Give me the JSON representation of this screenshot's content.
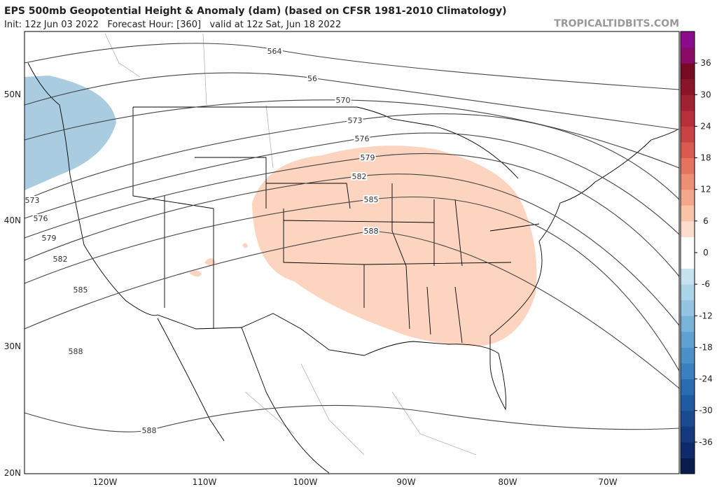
{
  "header": {
    "title": "EPS 500mb Geopotential Height & Anomaly (dam) (based on CFSR 1981-2010 Climatology)",
    "subtitle": "Init: 12z Jun 03 2022   Forecast Hour: [360]   valid at 12z Sat, Jun 18 2022",
    "watermark": "TROPICALTIDBITS.COM"
  },
  "map": {
    "lat_labels": [
      "50N",
      "40N",
      "30N",
      "20N"
    ],
    "lon_labels": [
      "120W",
      "110W",
      "100W",
      "90W",
      "80W",
      "70W"
    ],
    "contour_labels": [
      "564",
      "56",
      "570",
      "573",
      "576",
      "579",
      "582",
      "585",
      "588",
      "573",
      "576",
      "579",
      "582",
      "585",
      "588",
      "588"
    ]
  },
  "colorbar": {
    "ticks": [
      36,
      30,
      24,
      18,
      12,
      6,
      0,
      -6,
      -12,
      -18,
      -24,
      -30,
      -36
    ],
    "lim": [
      -42,
      42
    ],
    "colors": [
      "#0a1b4d",
      "#0f2a6b",
      "#13397f",
      "#194a92",
      "#1f5aa3",
      "#2a6cb2",
      "#3a7fbf",
      "#4b90c8",
      "#5fa1d0",
      "#78b3da",
      "#93c4e2",
      "#abd3e9",
      "#c6e1ef",
      "#ffffff",
      "#ffffff",
      "#fcdccb",
      "#f9c3a8",
      "#f4a88b",
      "#ee8f73",
      "#e5745f",
      "#d85b4f",
      "#c84343",
      "#b5303a",
      "#a02130",
      "#8a1428",
      "#760a22",
      "#8a0a6a",
      "#8c0a8c"
    ]
  }
}
